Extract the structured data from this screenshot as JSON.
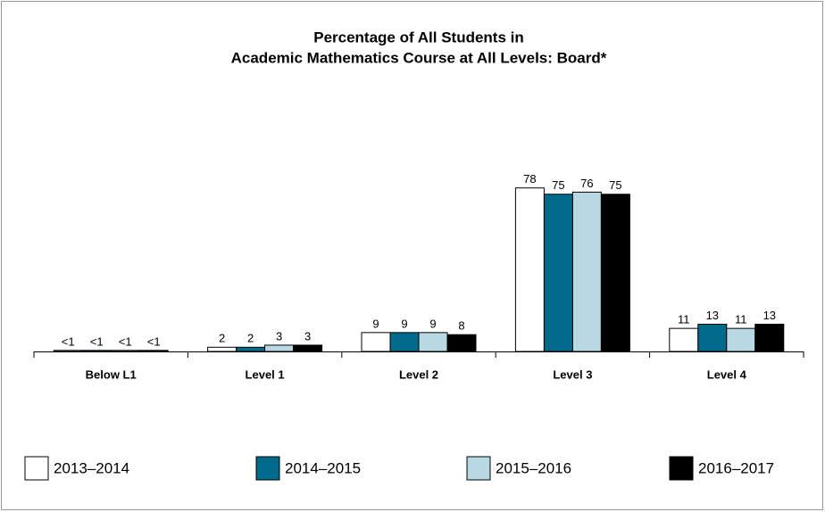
{
  "chart_data": {
    "type": "bar",
    "title": [
      "Percentage of All Students in",
      "Academic Mathematics Course at All Levels: Board*"
    ],
    "categories": [
      "Below L1",
      "Level 1",
      "Level 2",
      "Level 3",
      "Level 4"
    ],
    "series": [
      {
        "name": "2013–2014",
        "color": "#ffffff",
        "values": [
          0.5,
          2,
          9,
          78,
          11
        ],
        "value_labels": [
          "<1",
          "2",
          "9",
          "78",
          "11"
        ]
      },
      {
        "name": "2014–2015",
        "color": "#006a8a",
        "values": [
          0.5,
          2,
          9,
          75,
          13
        ],
        "value_labels": [
          "<1",
          "2",
          "9",
          "75",
          "13"
        ]
      },
      {
        "name": "2015–2016",
        "color": "#b8d8e3",
        "values": [
          0.5,
          3,
          9,
          76,
          11
        ],
        "value_labels": [
          "<1",
          "3",
          "9",
          "76",
          "11"
        ]
      },
      {
        "name": "2016–2017",
        "color": "#000000",
        "values": [
          0.5,
          3,
          8,
          75,
          13
        ],
        "value_labels": [
          "<1",
          "3",
          "8",
          "75",
          "13"
        ]
      }
    ],
    "ylim": [
      0,
      100
    ]
  }
}
